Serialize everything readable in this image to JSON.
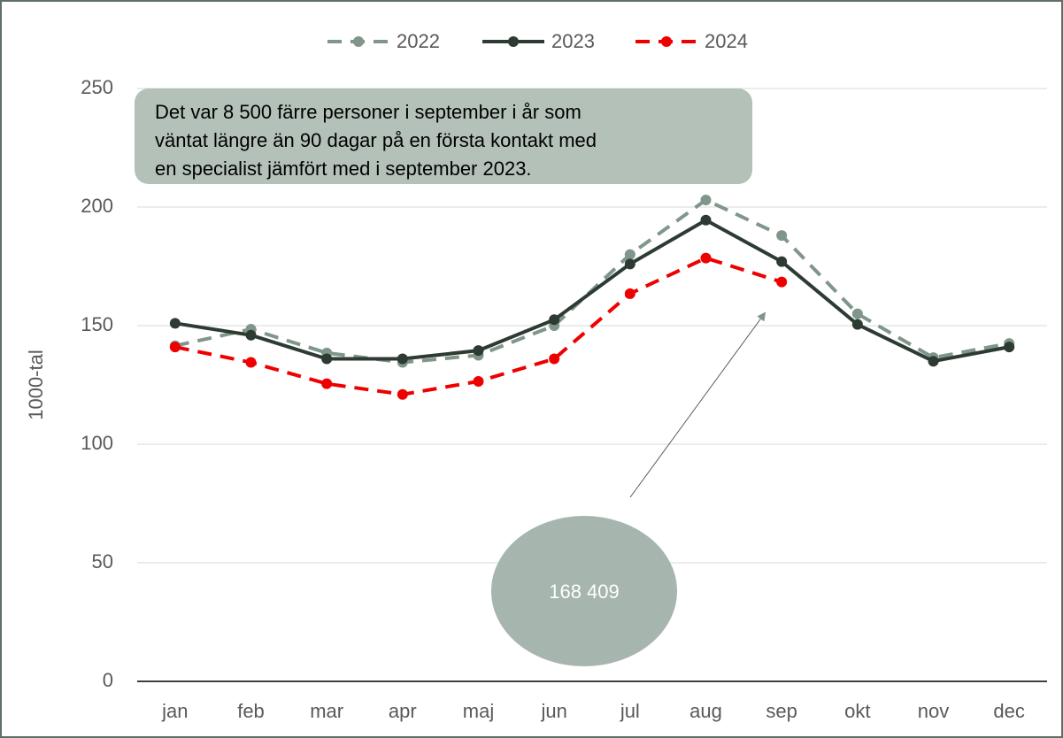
{
  "chart_data": {
    "type": "line",
    "y_label": "1000-tal",
    "categories": [
      "jan",
      "feb",
      "mar",
      "apr",
      "maj",
      "jun",
      "jul",
      "aug",
      "sep",
      "okt",
      "nov",
      "dec"
    ],
    "series": [
      {
        "name": "2022",
        "color": "#80968a",
        "dash": true,
        "values": [
          141.5,
          148.5,
          138.5,
          134.5,
          137.5,
          150,
          180,
          203,
          188,
          155,
          136.5,
          142.5
        ]
      },
      {
        "name": "2023",
        "color": "#2d3b33",
        "dash": false,
        "values": [
          151,
          146,
          136,
          136,
          139.5,
          152.5,
          176,
          194.5,
          177,
          150.5,
          135,
          141
        ]
      },
      {
        "name": "2024",
        "color": "#ee0000",
        "dash": true,
        "values": [
          141,
          134.5,
          125.5,
          121,
          126.5,
          136,
          163.5,
          178.5,
          168.409,
          null,
          null,
          null
        ]
      }
    ],
    "ylim": [
      0,
      250
    ],
    "yticks": [
      0,
      50,
      100,
      150,
      200,
      250
    ],
    "grid": true,
    "legend": "top",
    "annotation_box": [
      "Det var 8 500 färre personer i september i år som",
      "väntat längre än 90 dagar på en första kontakt med",
      "en specialist jämfört med i september 2023."
    ],
    "callout": "168 409"
  }
}
